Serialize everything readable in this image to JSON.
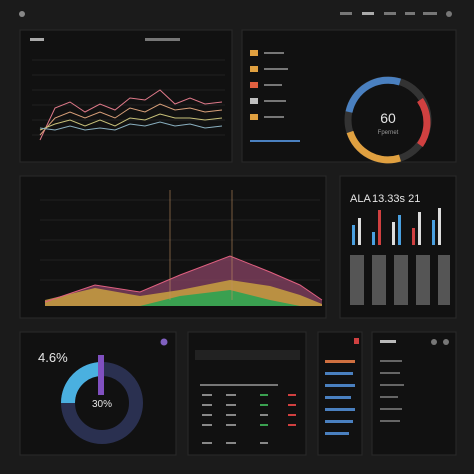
{
  "gauge": {
    "value": "60",
    "caption": "Fpernet"
  },
  "metrics": {
    "code": "ALA",
    "figure": "13.33s 21"
  },
  "donut": {
    "value": "4.6%",
    "center": "30%"
  }
}
